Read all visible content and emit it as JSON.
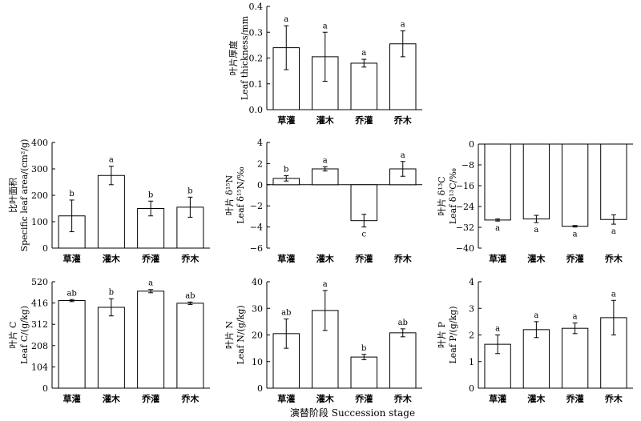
{
  "x_label": "演替阶段 Succession stage",
  "chart_data": [
    {
      "id": "leaf-thickness",
      "type": "bar",
      "ylabel": [
        "叶片厚度",
        "Leaf thickness/mm"
      ],
      "ylim": [
        0.0,
        0.4
      ],
      "yticks": [
        "0.0",
        "0.1",
        "0.2",
        "0.3",
        "0.4"
      ],
      "categories": [
        "草灌",
        "灌木",
        "乔灌",
        "乔木"
      ],
      "values": [
        0.24,
        0.205,
        0.18,
        0.255
      ],
      "errors": [
        0.085,
        0.095,
        0.015,
        0.05
      ],
      "letters": [
        "a",
        "a",
        "a",
        "a"
      ]
    },
    {
      "id": "specific-leaf-area",
      "type": "bar",
      "ylabel": [
        "比叶面积",
        "Specific leaf area/(cm²/g)"
      ],
      "ylim": [
        0,
        400
      ],
      "yticks": [
        "0",
        "100",
        "200",
        "300",
        "400"
      ],
      "categories": [
        "草灌",
        "灌木",
        "乔灌",
        "乔木"
      ],
      "values": [
        122,
        275,
        150,
        155
      ],
      "errors": [
        60,
        35,
        28,
        38
      ],
      "letters": [
        "b",
        "a",
        "b",
        "b"
      ]
    },
    {
      "id": "leaf-d15n",
      "type": "bar",
      "ylabel": [
        "叶片 δ¹⁵N",
        "Leaf δ¹⁵N/‰"
      ],
      "ylim": [
        -6,
        4
      ],
      "yticks": [
        "−6",
        "−4",
        "−2",
        "0",
        "2",
        "4"
      ],
      "categories": [
        "草灌",
        "灌木",
        "乔灌",
        "乔木"
      ],
      "values": [
        0.6,
        1.5,
        -3.4,
        1.5
      ],
      "errors": [
        0.25,
        0.2,
        0.6,
        0.7
      ],
      "letters": [
        "b",
        "a",
        "c",
        "a"
      ]
    },
    {
      "id": "leaf-d13c",
      "type": "bar",
      "ylabel": [
        "叶片 δ¹³C",
        "Leaf δ¹³C/‰"
      ],
      "ylim": [
        -40,
        0
      ],
      "yticks": [
        "−40",
        "−32",
        "−24",
        "−16",
        "−8",
        "0"
      ],
      "categories": [
        "草灌",
        "灌木",
        "乔灌",
        "乔木"
      ],
      "values": [
        -29.2,
        -28.8,
        -31.6,
        -29.0
      ],
      "errors": [
        0.4,
        1.4,
        0.3,
        1.8
      ],
      "letters": [
        "a",
        "a",
        "a",
        "a"
      ]
    },
    {
      "id": "leaf-c",
      "type": "bar",
      "ylabel": [
        "叶片 C",
        "Leaf C/(g/kg)"
      ],
      "ylim": [
        0,
        520
      ],
      "yticks": [
        "0",
        "104",
        "208",
        "312",
        "416",
        "520"
      ],
      "categories": [
        "草灌",
        "灌木",
        "乔灌",
        "乔木"
      ],
      "values": [
        428,
        395,
        474,
        415
      ],
      "errors": [
        5,
        42,
        8,
        6
      ],
      "letters": [
        "ab",
        "b",
        "a",
        "ab"
      ]
    },
    {
      "id": "leaf-n",
      "type": "bar",
      "ylabel": [
        "叶片 N",
        "Leaf N/(g/kg)"
      ],
      "ylim": [
        0,
        40
      ],
      "yticks": [
        "0",
        "10",
        "20",
        "30",
        "40"
      ],
      "categories": [
        "草灌",
        "灌木",
        "乔灌",
        "乔木"
      ],
      "values": [
        20.5,
        29.2,
        11.7,
        20.8
      ],
      "errors": [
        5.5,
        7.5,
        1.0,
        1.5
      ],
      "letters": [
        "ab",
        "a",
        "b",
        "ab"
      ]
    },
    {
      "id": "leaf-p",
      "type": "bar",
      "ylabel": [
        "叶片 P",
        "Leaf P/(g/kg)"
      ],
      "ylim": [
        0,
        4
      ],
      "yticks": [
        "0",
        "1",
        "2",
        "3",
        "4"
      ],
      "categories": [
        "草灌",
        "灌木",
        "乔灌",
        "乔木"
      ],
      "values": [
        1.65,
        2.2,
        2.25,
        2.65
      ],
      "errors": [
        0.35,
        0.3,
        0.2,
        0.65
      ],
      "letters": [
        "a",
        "a",
        "a",
        "a"
      ]
    }
  ]
}
